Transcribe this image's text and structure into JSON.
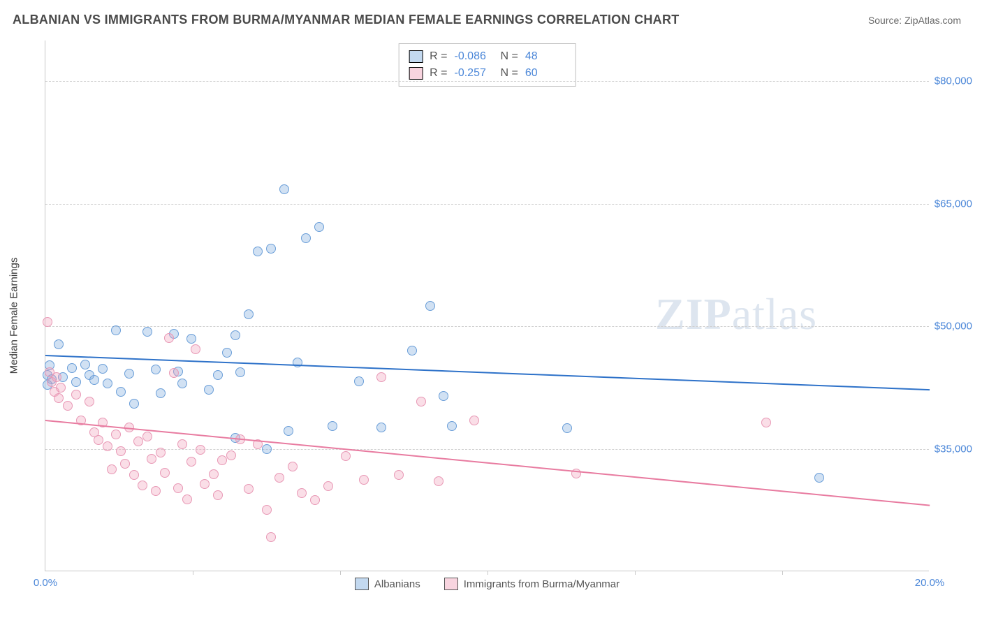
{
  "header": {
    "title": "ALBANIAN VS IMMIGRANTS FROM BURMA/MYANMAR MEDIAN FEMALE EARNINGS CORRELATION CHART",
    "source": "Source: ZipAtlas.com"
  },
  "watermark": {
    "zip": "ZIP",
    "atlas": "atlas"
  },
  "chart": {
    "type": "scatter",
    "yaxis_label": "Median Female Earnings",
    "xlim": [
      0,
      20
    ],
    "ylim": [
      20000,
      85000
    ],
    "xticks": [
      0,
      20
    ],
    "xtick_labels": [
      "0.0%",
      "20.0%"
    ],
    "xgrid_ticks": [
      3.33,
      6.67,
      10.0,
      13.33,
      16.67
    ],
    "yticks": [
      35000,
      50000,
      65000,
      80000
    ],
    "ytick_labels": [
      "$35,000",
      "$50,000",
      "$65,000",
      "$80,000"
    ],
    "background_color": "#ffffff",
    "grid_color": "#d0d0d0",
    "axis_color": "#c7c7c7",
    "tick_label_color": "#4a86d8",
    "marker_radius": 7,
    "series": [
      {
        "name": "Albanians",
        "color_fill": "rgba(122,170,222,0.35)",
        "color_stroke": "#6a9ed8",
        "trend_color": "#2e72c9",
        "r": -0.086,
        "n": 48,
        "trend": {
          "y_at_x0": 46500,
          "y_at_x20": 42300
        },
        "points": [
          [
            0.05,
            44000
          ],
          [
            0.1,
            45200
          ],
          [
            0.15,
            43500
          ],
          [
            0.3,
            47800
          ],
          [
            0.6,
            44900
          ],
          [
            0.4,
            43800
          ],
          [
            0.7,
            43200
          ],
          [
            0.9,
            45300
          ],
          [
            1.0,
            44000
          ],
          [
            1.1,
            43400
          ],
          [
            1.3,
            44800
          ],
          [
            1.4,
            43000
          ],
          [
            1.6,
            49500
          ],
          [
            1.7,
            42000
          ],
          [
            1.9,
            44200
          ],
          [
            2.0,
            40500
          ],
          [
            2.3,
            49300
          ],
          [
            2.5,
            44700
          ],
          [
            2.6,
            41800
          ],
          [
            2.9,
            49100
          ],
          [
            3.0,
            44500
          ],
          [
            3.1,
            43000
          ],
          [
            3.3,
            48500
          ],
          [
            3.7,
            42200
          ],
          [
            3.9,
            44000
          ],
          [
            4.1,
            46800
          ],
          [
            4.3,
            48900
          ],
          [
            4.3,
            36300
          ],
          [
            4.4,
            44400
          ],
          [
            4.6,
            51500
          ],
          [
            4.8,
            59200
          ],
          [
            5.0,
            35000
          ],
          [
            5.1,
            59500
          ],
          [
            5.4,
            66800
          ],
          [
            5.5,
            37200
          ],
          [
            5.7,
            45600
          ],
          [
            5.9,
            60800
          ],
          [
            6.2,
            62200
          ],
          [
            6.5,
            37800
          ],
          [
            7.1,
            43300
          ],
          [
            7.6,
            37600
          ],
          [
            8.3,
            47000
          ],
          [
            8.7,
            52500
          ],
          [
            9.0,
            41500
          ],
          [
            9.2,
            37800
          ],
          [
            11.8,
            37500
          ],
          [
            17.5,
            31500
          ],
          [
            0.05,
            42800
          ]
        ]
      },
      {
        "name": "Immigrants from Burma/Myanmar",
        "color_fill": "rgba(240,160,185,0.35)",
        "color_stroke": "#e898b5",
        "trend_color": "#e87ba0",
        "r": -0.257,
        "n": 60,
        "trend": {
          "y_at_x0": 38600,
          "y_at_x20": 28200
        },
        "points": [
          [
            0.05,
            50500
          ],
          [
            0.1,
            44400
          ],
          [
            0.15,
            43200
          ],
          [
            0.2,
            42000
          ],
          [
            0.25,
            43800
          ],
          [
            0.3,
            41200
          ],
          [
            0.35,
            42500
          ],
          [
            0.5,
            40300
          ],
          [
            0.7,
            41600
          ],
          [
            0.8,
            38500
          ],
          [
            1.0,
            40800
          ],
          [
            1.1,
            37000
          ],
          [
            1.2,
            36100
          ],
          [
            1.3,
            38200
          ],
          [
            1.4,
            35300
          ],
          [
            1.5,
            32500
          ],
          [
            1.6,
            36800
          ],
          [
            1.7,
            34700
          ],
          [
            1.8,
            33200
          ],
          [
            1.9,
            37600
          ],
          [
            2.0,
            31800
          ],
          [
            2.1,
            35900
          ],
          [
            2.2,
            30500
          ],
          [
            2.3,
            36500
          ],
          [
            2.4,
            33800
          ],
          [
            2.5,
            29800
          ],
          [
            2.6,
            34500
          ],
          [
            2.7,
            32100
          ],
          [
            2.9,
            44300
          ],
          [
            3.0,
            30200
          ],
          [
            3.1,
            35600
          ],
          [
            3.2,
            28800
          ],
          [
            3.3,
            33400
          ],
          [
            3.5,
            34900
          ],
          [
            3.6,
            30700
          ],
          [
            3.8,
            31900
          ],
          [
            3.9,
            29300
          ],
          [
            4.0,
            33600
          ],
          [
            4.2,
            34200
          ],
          [
            4.4,
            36200
          ],
          [
            4.6,
            30100
          ],
          [
            4.8,
            35600
          ],
          [
            5.0,
            27500
          ],
          [
            5.1,
            24200
          ],
          [
            5.3,
            31500
          ],
          [
            5.6,
            32800
          ],
          [
            5.8,
            29600
          ],
          [
            6.1,
            28700
          ],
          [
            6.4,
            30400
          ],
          [
            6.8,
            34100
          ],
          [
            7.2,
            31200
          ],
          [
            7.6,
            43800
          ],
          [
            8.0,
            31800
          ],
          [
            8.5,
            40800
          ],
          [
            8.9,
            31000
          ],
          [
            9.7,
            38500
          ],
          [
            12.0,
            32000
          ],
          [
            16.3,
            38200
          ],
          [
            2.8,
            48600
          ],
          [
            3.4,
            47200
          ]
        ]
      }
    ],
    "legend_stats": {
      "r_label": "R =",
      "n_label": "N ="
    },
    "bottom_legend": [
      "Albanians",
      "Immigrants from Burma/Myanmar"
    ]
  }
}
